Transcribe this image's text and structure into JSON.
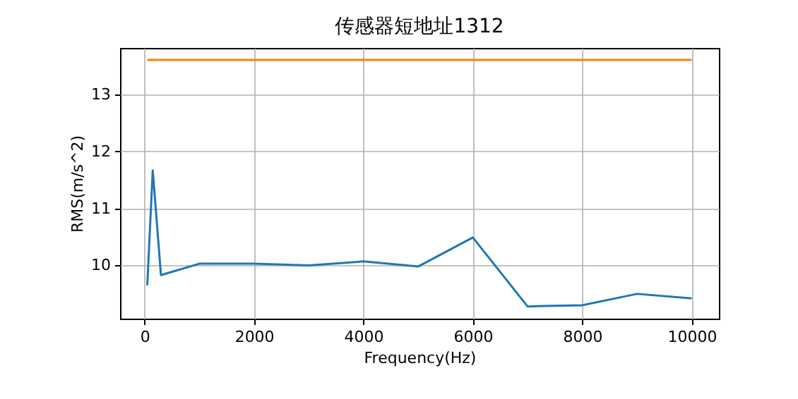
{
  "chart_data": {
    "type": "line",
    "title": "传感器短地址1312",
    "xlabel": "Frequency(Hz)",
    "ylabel": "RMS(m/s^2)",
    "xlim": [
      -447.5,
      10497.5
    ],
    "xticks": [
      0,
      2000,
      4000,
      6000,
      8000,
      10000
    ],
    "ylim": [
      9.065,
      13.82
    ],
    "yticks": [
      10,
      11,
      12,
      13
    ],
    "grid": true,
    "series": [
      {
        "color": "#1f77b4",
        "x": [
          50,
          150,
          300,
          1000,
          2000,
          3000,
          4000,
          5000,
          6000,
          7000,
          8000,
          9000,
          10000
        ],
        "values": [
          9.65,
          11.67,
          9.83,
          10.03,
          10.03,
          10.0,
          10.07,
          9.98,
          10.49,
          9.28,
          9.3,
          9.5,
          9.42
        ]
      },
      {
        "color": "#ff7f0e",
        "x": [
          50,
          10000
        ],
        "values": [
          13.61,
          13.61
        ]
      }
    ]
  }
}
